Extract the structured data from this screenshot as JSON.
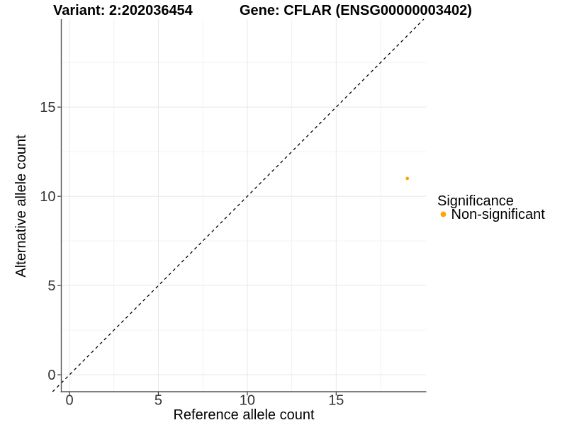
{
  "chart_data": {
    "type": "scatter",
    "title_left": "Variant: 2:202036454",
    "title_right": "Gene: CFLAR (ENSG00000003402)",
    "xlabel": "Reference allele count",
    "ylabel": "Alternative allele count",
    "xlim": [
      -0.46,
      20.07
    ],
    "ylim": [
      -0.95,
      19.93
    ],
    "xticks": [
      0,
      5,
      10,
      15
    ],
    "yticks": [
      0,
      5,
      10,
      15
    ],
    "minor_gridlines_x": [
      2.5,
      7.5,
      12.5,
      17.5
    ],
    "minor_gridlines_y": [
      2.5,
      7.5,
      12.5,
      17.5
    ],
    "grid": true,
    "points": [
      {
        "x": 19,
        "y": 11,
        "series": "Non-significant",
        "color": "#FFA500"
      }
    ],
    "reference_line": {
      "type": "identity",
      "slope": 1,
      "intercept": 0,
      "style": "dashed",
      "color": "#000000"
    },
    "legend": {
      "title": "Significance",
      "position": "right",
      "entries": [
        {
          "label": "Non-significant",
          "color": "#FFA500"
        }
      ]
    }
  },
  "colors": {
    "background": "#FFFFFF",
    "grid": "#E9E9E9",
    "grid_minor": "#F0F0F0",
    "axis_line": "#555555",
    "tick_mark": "#333333",
    "tick_text": "#333333",
    "point": "#FFA500"
  }
}
